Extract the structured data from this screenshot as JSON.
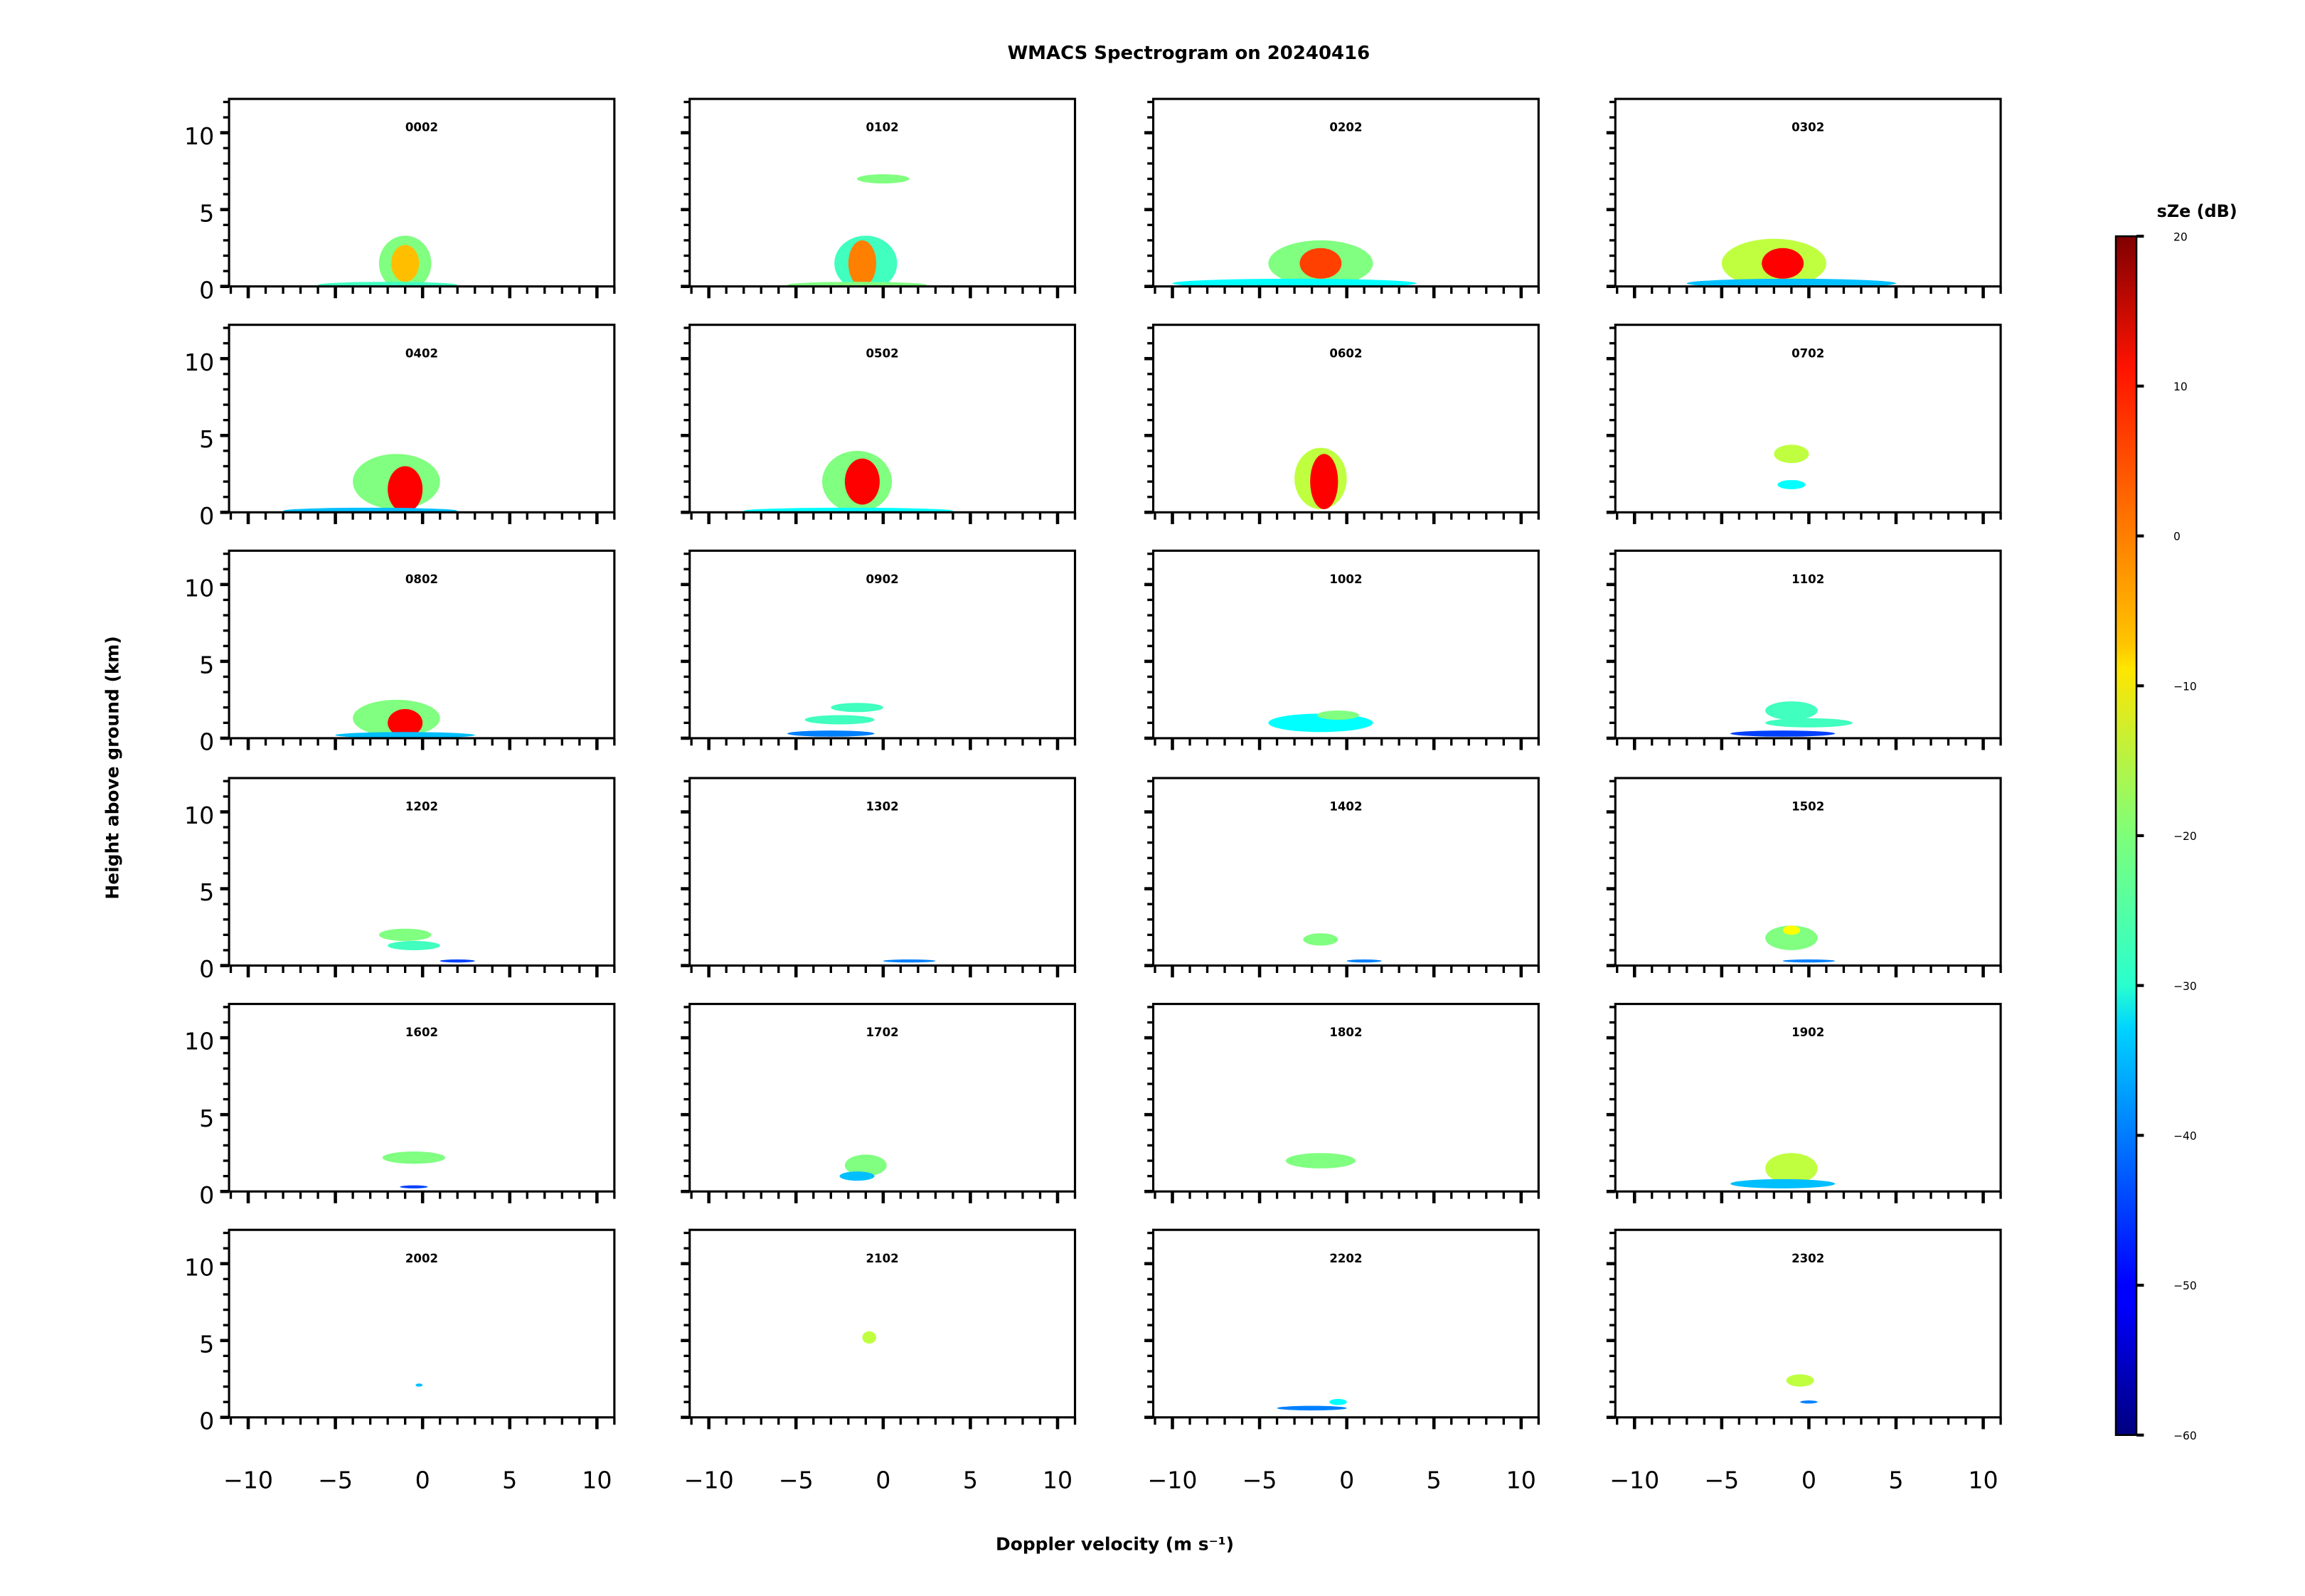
{
  "chart_data": {
    "type": "heatmap",
    "title": "WMACS Spectrogram on 20240416",
    "xlabel": "Doppler velocity (m s⁻¹)",
    "ylabel": "Height above ground (km)",
    "xlim": [
      -11.1,
      11
    ],
    "ylim": [
      0,
      12.2
    ],
    "xticks": [
      -10,
      -5,
      0,
      5,
      10
    ],
    "xtick_labels": [
      "−10",
      "−5",
      "0",
      "5",
      "10"
    ],
    "yticks": [
      0,
      5,
      10
    ],
    "ytick_labels": [
      "0",
      "5",
      "10"
    ],
    "colorbar": {
      "label": "sZe (dB)",
      "min": -60,
      "max": 20,
      "ticks": [
        20,
        10,
        0,
        -10,
        -20,
        -30,
        -40,
        -50,
        -60
      ],
      "tick_labels": [
        "20",
        "10",
        "0",
        "−10",
        "−20",
        "−30",
        "−40",
        "−50",
        "−60"
      ],
      "colormap": "jet"
    },
    "blob_format": "[velocity_center, height_center, velocity_halfwidth, height_halfwidth, dB]",
    "panels": [
      {
        "label": "0002",
        "blobs": [
          [
            -1,
            1.5,
            1.5,
            1.8,
            -20
          ],
          [
            -1,
            1.5,
            0.8,
            1.2,
            -5
          ],
          [
            -2,
            0.1,
            4,
            0.2,
            -25
          ]
        ]
      },
      {
        "label": "0102",
        "blobs": [
          [
            -1,
            1.5,
            1.8,
            1.8,
            -25
          ],
          [
            -1.2,
            1.5,
            0.8,
            1.5,
            0
          ],
          [
            -1.5,
            0.1,
            4,
            0.2,
            -20
          ],
          [
            0,
            7,
            1.5,
            0.3,
            -20
          ]
        ]
      },
      {
        "label": "0202",
        "blobs": [
          [
            -1.5,
            1.5,
            3,
            1.5,
            -20
          ],
          [
            -1.5,
            1.5,
            1.2,
            1,
            5
          ],
          [
            -3,
            0.2,
            7,
            0.3,
            -30
          ]
        ]
      },
      {
        "label": "0302",
        "blobs": [
          [
            -2,
            1.5,
            3,
            1.6,
            -15
          ],
          [
            -1.5,
            1.5,
            1.2,
            1,
            10
          ],
          [
            -1,
            0.2,
            6,
            0.3,
            -35
          ]
        ]
      },
      {
        "label": "0402",
        "blobs": [
          [
            -1.5,
            2,
            2.5,
            1.8,
            -20
          ],
          [
            -1,
            1.5,
            1,
            1.5,
            10
          ],
          [
            -3,
            0.1,
            5,
            0.2,
            -35
          ]
        ]
      },
      {
        "label": "0502",
        "blobs": [
          [
            -1.5,
            2,
            2,
            2,
            -20
          ],
          [
            -1.2,
            2,
            1,
            1.5,
            10
          ],
          [
            -2,
            0.1,
            6,
            0.2,
            -30
          ]
        ]
      },
      {
        "label": "0602",
        "blobs": [
          [
            -1.5,
            2.2,
            1.5,
            2,
            -15
          ],
          [
            -1.3,
            2,
            0.8,
            1.8,
            10
          ]
        ]
      },
      {
        "label": "0702",
        "blobs": [
          [
            -1,
            3.8,
            1,
            0.6,
            -15
          ],
          [
            -1,
            1.8,
            0.8,
            0.3,
            -30
          ]
        ]
      },
      {
        "label": "0802",
        "blobs": [
          [
            -1.5,
            1.3,
            2.5,
            1.2,
            -20
          ],
          [
            -1,
            1,
            1,
            0.9,
            10
          ],
          [
            -1,
            0.2,
            4,
            0.2,
            -35
          ]
        ]
      },
      {
        "label": "0902",
        "blobs": [
          [
            -1.5,
            2,
            1.5,
            0.3,
            -25
          ],
          [
            -2.5,
            1.2,
            2,
            0.3,
            -25
          ],
          [
            -3,
            0.3,
            2.5,
            0.2,
            -40
          ]
        ]
      },
      {
        "label": "1002",
        "blobs": [
          [
            -1.5,
            1,
            3,
            0.6,
            -30
          ],
          [
            -0.5,
            1.5,
            1.2,
            0.3,
            -20
          ]
        ]
      },
      {
        "label": "1102",
        "blobs": [
          [
            -1,
            1.8,
            1.5,
            0.6,
            -25
          ],
          [
            0,
            1,
            2.5,
            0.3,
            -25
          ],
          [
            -1.5,
            0.3,
            3,
            0.2,
            -45
          ]
        ]
      },
      {
        "label": "1202",
        "blobs": [
          [
            -1,
            2,
            1.5,
            0.4,
            -20
          ],
          [
            -0.5,
            1.3,
            1.5,
            0.3,
            -25
          ],
          [
            2,
            0.3,
            1,
            0.1,
            -45
          ]
        ]
      },
      {
        "label": "1302",
        "blobs": [
          [
            1.5,
            0.3,
            1.5,
            0.1,
            -40
          ]
        ]
      },
      {
        "label": "1402",
        "blobs": [
          [
            -1.5,
            1.7,
            1,
            0.4,
            -20
          ],
          [
            1,
            0.3,
            1,
            0.1,
            -40
          ]
        ]
      },
      {
        "label": "1502",
        "blobs": [
          [
            -1,
            1.8,
            1.5,
            0.8,
            -20
          ],
          [
            -1,
            2.3,
            0.5,
            0.3,
            -10
          ],
          [
            0,
            0.3,
            1.5,
            0.1,
            -40
          ]
        ]
      },
      {
        "label": "1602",
        "blobs": [
          [
            -0.5,
            2.2,
            1.8,
            0.4,
            -20
          ],
          [
            -0.5,
            0.3,
            0.8,
            0.1,
            -45
          ]
        ]
      },
      {
        "label": "1702",
        "blobs": [
          [
            -1,
            1.7,
            1.2,
            0.7,
            -20
          ],
          [
            -1.5,
            1,
            1,
            0.3,
            -35
          ]
        ]
      },
      {
        "label": "1802",
        "blobs": [
          [
            -1.5,
            2,
            2,
            0.5,
            -20
          ]
        ]
      },
      {
        "label": "1902",
        "blobs": [
          [
            -1,
            1.5,
            1.5,
            1,
            -15
          ],
          [
            -1.5,
            0.5,
            3,
            0.3,
            -35
          ]
        ]
      },
      {
        "label": "2002",
        "blobs": [
          [
            -0.2,
            2.1,
            0.2,
            0.1,
            -35
          ]
        ]
      },
      {
        "label": "2102",
        "blobs": [
          [
            -0.8,
            5.2,
            0.4,
            0.4,
            -15
          ]
        ]
      },
      {
        "label": "2202",
        "blobs": [
          [
            -2,
            0.6,
            2,
            0.15,
            -40
          ],
          [
            -0.5,
            1,
            0.5,
            0.2,
            -30
          ]
        ]
      },
      {
        "label": "2302",
        "blobs": [
          [
            -0.5,
            2.4,
            0.8,
            0.4,
            -15
          ],
          [
            0,
            1,
            0.5,
            0.1,
            -40
          ]
        ]
      }
    ]
  }
}
